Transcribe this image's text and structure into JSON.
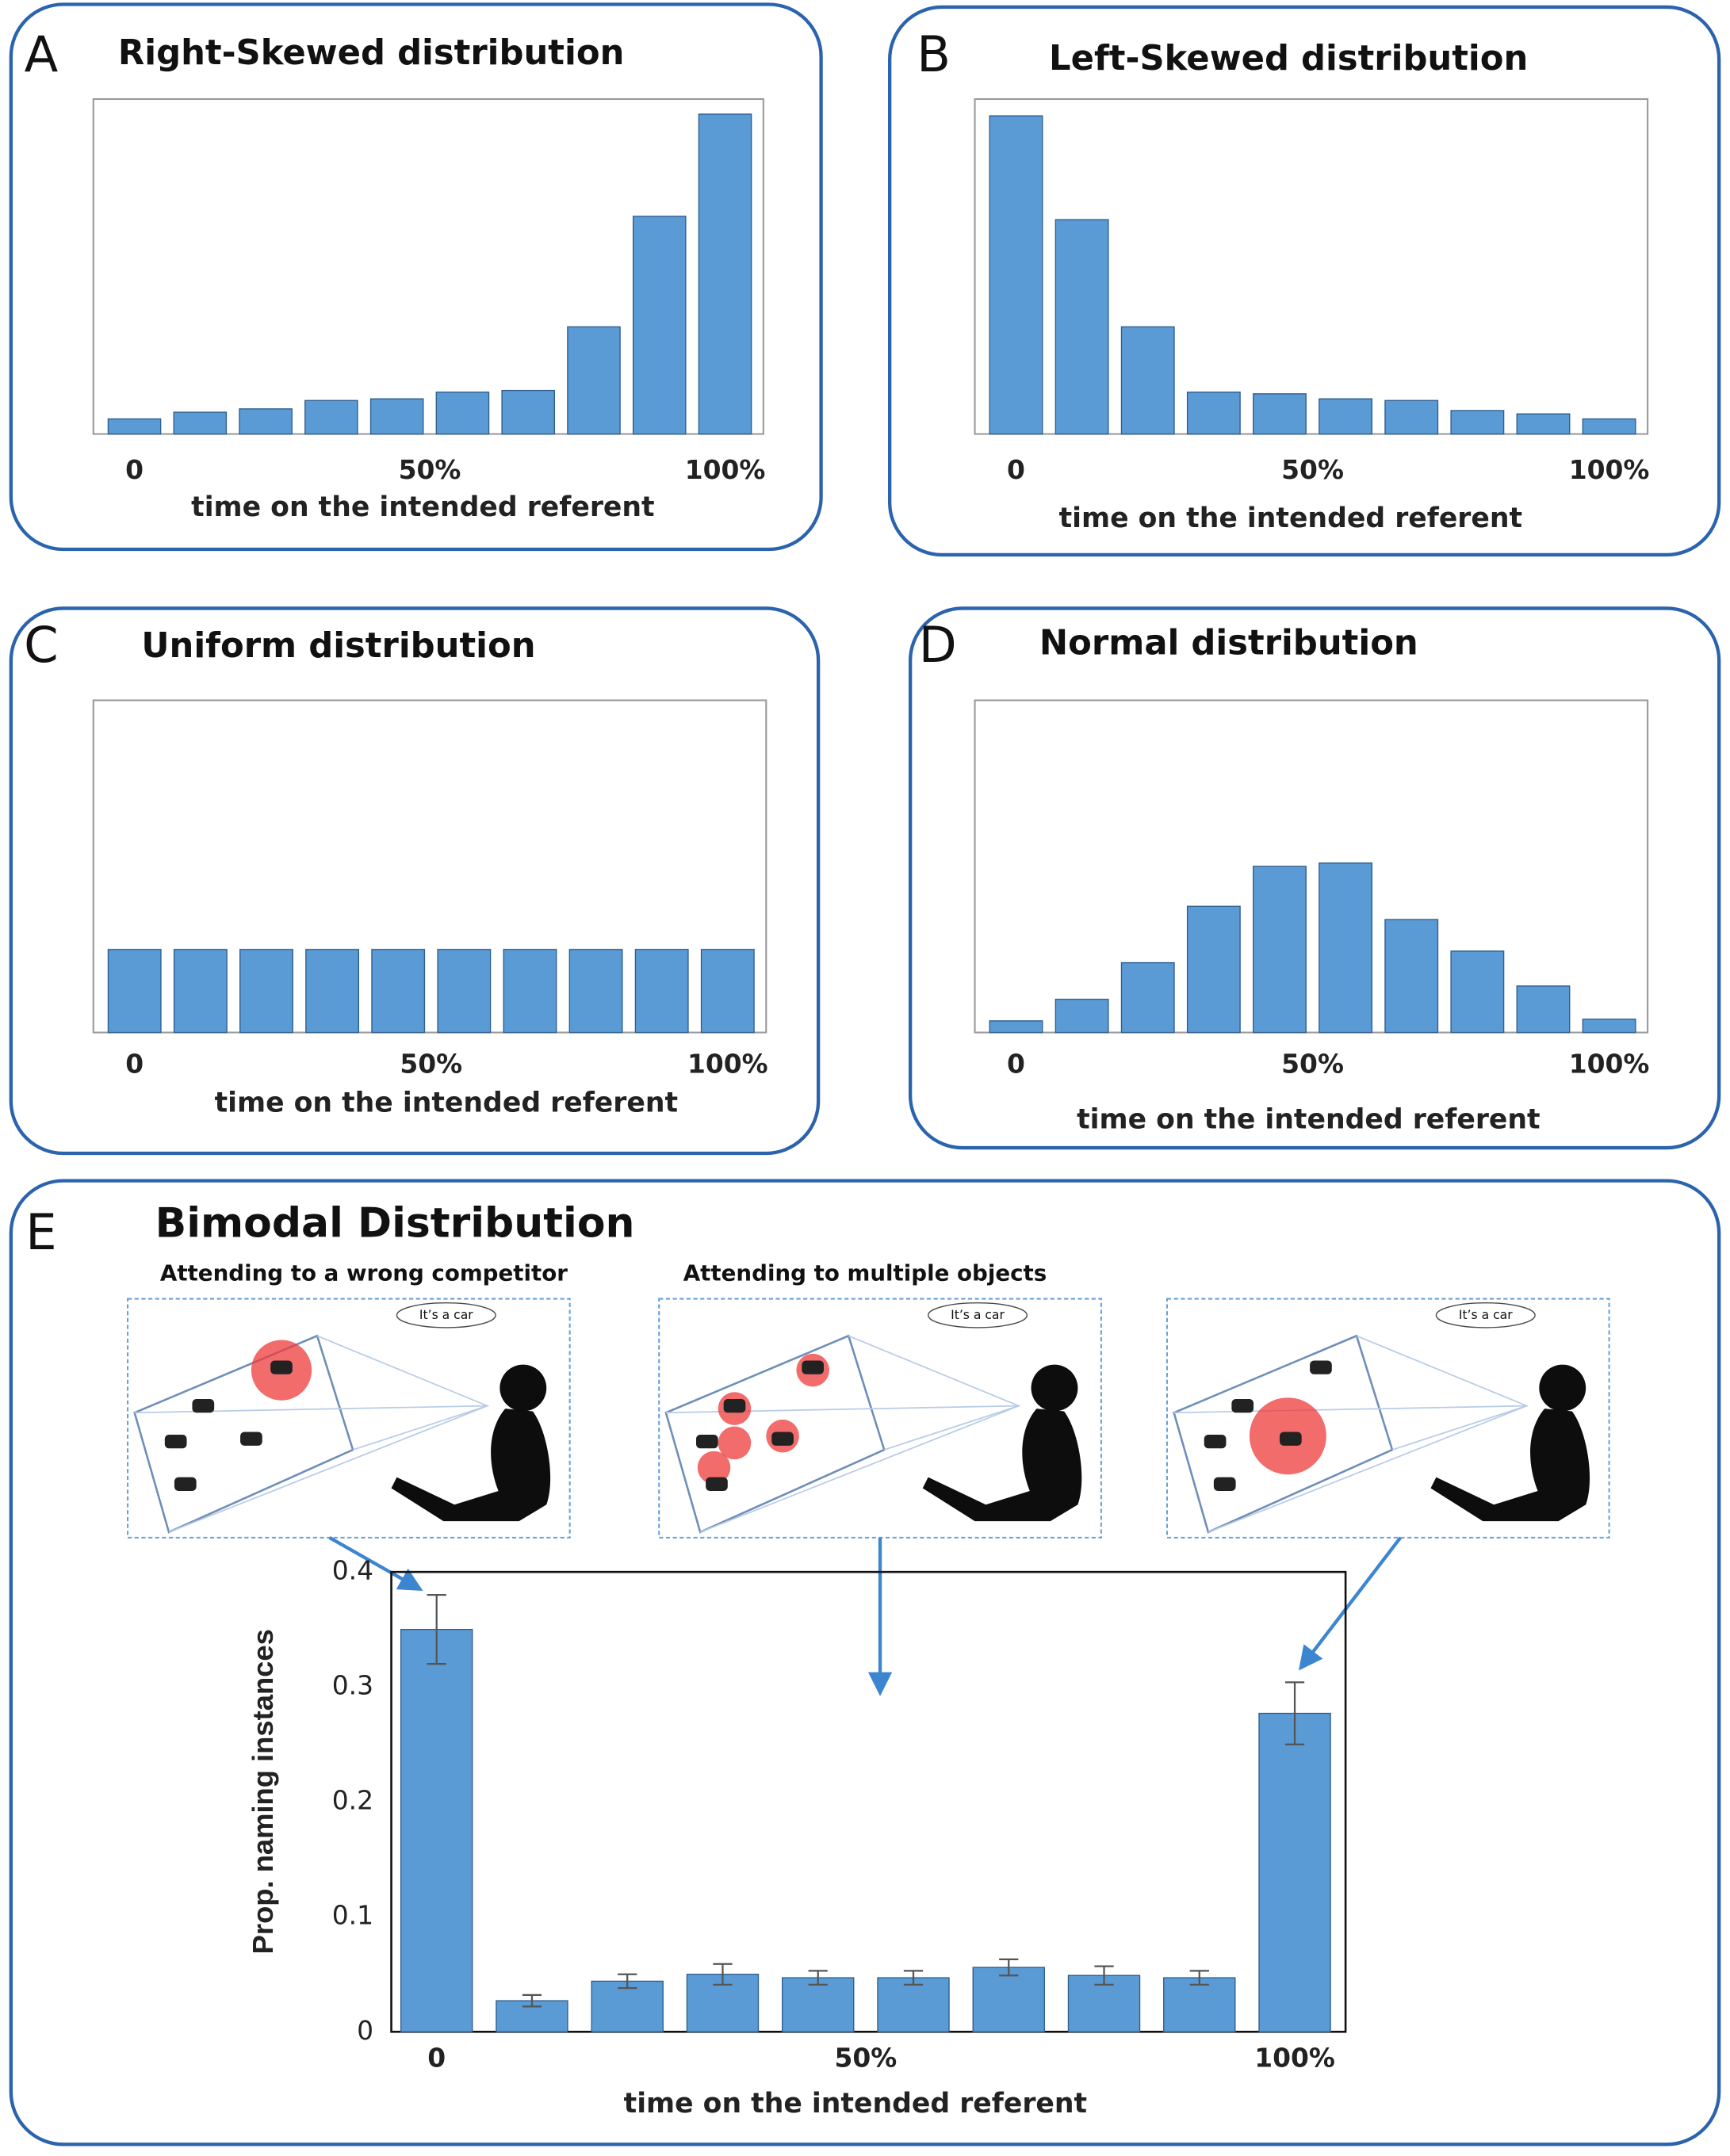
{
  "chart_data": [
    {
      "type": "bar",
      "panel": "A",
      "title": "Right-Skewed distribution",
      "values": [
        0.045,
        0.065,
        0.075,
        0.1,
        0.105,
        0.125,
        0.13,
        0.32,
        0.65,
        0.955
      ],
      "color": "#5b9bd5",
      "ylim": [
        0,
        1
      ],
      "xlim": [
        0,
        100
      ],
      "xticks": [
        {
          "value": 0,
          "label": "0"
        },
        {
          "value": 50,
          "label": "50%"
        },
        {
          "value": 100,
          "label": "100%"
        }
      ],
      "xlabel": "time on the intended referent"
    },
    {
      "type": "bar",
      "panel": "B",
      "title": "Left-Skewed distribution",
      "values": [
        0.95,
        0.64,
        0.32,
        0.125,
        0.12,
        0.105,
        0.1,
        0.07,
        0.06,
        0.045
      ],
      "color": "#5b9bd5",
      "ylim": [
        0,
        1
      ],
      "xlim": [
        0,
        100
      ],
      "xticks": [
        {
          "value": 0,
          "label": "0"
        },
        {
          "value": 50,
          "label": "50%"
        },
        {
          "value": 100,
          "label": "100%"
        }
      ],
      "xlabel": "time on the intended referent"
    },
    {
      "type": "bar",
      "panel": "C",
      "title": "Uniform distribution",
      "values": [
        0.25,
        0.25,
        0.25,
        0.25,
        0.25,
        0.25,
        0.25,
        0.25,
        0.25,
        0.25
      ],
      "color": "#5b9bd5",
      "ylim": [
        0,
        1
      ],
      "xlim": [
        0,
        100
      ],
      "xticks": [
        {
          "value": 0,
          "label": "0"
        },
        {
          "value": 50,
          "label": "50%"
        },
        {
          "value": 100,
          "label": "100%"
        }
      ],
      "xlabel": "time on the intended referent"
    },
    {
      "type": "bar",
      "panel": "D",
      "title": "Normal distribution",
      "values": [
        0.035,
        0.1,
        0.21,
        0.38,
        0.5,
        0.51,
        0.34,
        0.245,
        0.14,
        0.04
      ],
      "color": "#5b9bd5",
      "ylim": [
        0,
        1
      ],
      "xlim": [
        0,
        100
      ],
      "xticks": [
        {
          "value": 0,
          "label": "0"
        },
        {
          "value": 50,
          "label": "50%"
        },
        {
          "value": 100,
          "label": "100%"
        }
      ],
      "xlabel": "time on the intended referent"
    },
    {
      "type": "errorbar",
      "panel": "E",
      "title": "Bimodal Distribution",
      "annotations": [
        "Attending to a wrong competitor",
        "Attending to multiple objects"
      ],
      "speech": [
        "It’s a car",
        "It’s a car",
        "It’s a car"
      ],
      "values": [
        0.35,
        0.027,
        0.044,
        0.05,
        0.047,
        0.047,
        0.056,
        0.049,
        0.047,
        0.277
      ],
      "errors": [
        0.03,
        0.005,
        0.006,
        0.009,
        0.006,
        0.006,
        0.007,
        0.008,
        0.006,
        0.027
      ],
      "color": "#5b9bd5",
      "ylim": [
        0,
        0.4
      ],
      "yticks": [
        0,
        0.1,
        0.2,
        0.3,
        0.4
      ],
      "xlim": [
        0,
        100
      ],
      "xticks": [
        {
          "value": 0,
          "label": "0"
        },
        {
          "value": 50,
          "label": "50%"
        },
        {
          "value": 100,
          "label": "100%"
        }
      ],
      "ylabel": "Prop. naming instances",
      "xlabel": "time on the intended referent"
    }
  ]
}
